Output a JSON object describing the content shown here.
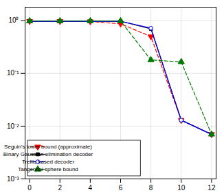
{
  "chart_data": {
    "type": "line",
    "x": [
      0,
      2,
      4,
      6,
      8,
      10,
      12
    ],
    "series": [
      {
        "name": "Seguin's lower bound (approximate)",
        "color": "#ff0000",
        "marker": "triangle-down",
        "line_style": "dashed",
        "values": [
          0.975,
          0.975,
          0.965,
          0.87,
          0.5,
          0.013,
          0.007
        ]
      },
      {
        "name": "Binary Gaussian elimination decoder",
        "color": "#000000",
        "marker": "square",
        "line_style": "solid",
        "values": [
          0.975,
          0.975,
          0.975,
          0.975,
          0.7,
          0.013,
          0.007
        ]
      },
      {
        "name": "Trellis based decoder",
        "color": "#0000ff",
        "marker": "circle-open",
        "line_style": "solid",
        "values": [
          0.975,
          0.975,
          0.975,
          0.975,
          0.72,
          0.013,
          0.007
        ]
      },
      {
        "name": "Tangential sphere bound",
        "color": "#007700",
        "marker": "triangle-up",
        "line_style": "dashed",
        "values": [
          0.985,
          0.985,
          0.985,
          0.985,
          0.18,
          0.165,
          0.007
        ]
      }
    ],
    "xlim": [
      -0.3,
      12.3
    ],
    "ylim": [
      0.001,
      1.8
    ],
    "xticks": [
      0,
      2,
      4,
      6,
      8,
      10,
      12
    ],
    "yticks": [
      {
        "value": 0.001,
        "label": "10⁻³"
      },
      {
        "value": 0.01,
        "label": "10⁻²"
      },
      {
        "value": 0.1,
        "label": "10⁻¹"
      },
      {
        "value": 1,
        "label": "10⁰"
      }
    ],
    "log": "y",
    "grid": true,
    "legend": "lower left"
  }
}
